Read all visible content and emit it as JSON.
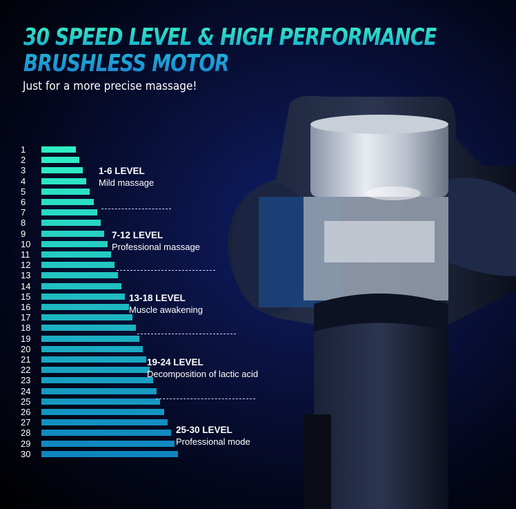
{
  "header": {
    "title_line1": "30 SPEED LEVEL & HIGH PERFORMANCE",
    "title_line2": "BRUSHLESS MOTOR",
    "subtitle": "Just for a more precise massage!"
  },
  "levels": [
    1,
    2,
    3,
    4,
    5,
    6,
    7,
    8,
    9,
    10,
    11,
    12,
    13,
    14,
    15,
    16,
    17,
    18,
    19,
    20,
    21,
    22,
    23,
    24,
    25,
    26,
    27,
    28,
    29,
    30
  ],
  "bar_colors": {
    "start": "#2ff0c4",
    "end": "#0f85c0"
  },
  "groups": [
    {
      "range": "1-6 LEVEL",
      "desc": "Mild massage"
    },
    {
      "range": "7-12 LEVEL",
      "desc": "Professional massage"
    },
    {
      "range": "13-18 LEVEL",
      "desc": "Muscle awakening"
    },
    {
      "range": "19-24 LEVEL",
      "desc": "Decomposition of lactic acid"
    },
    {
      "range": "25-30 LEVEL",
      "desc": "Professional mode"
    }
  ],
  "product_image": "massage-gun-cutaway"
}
